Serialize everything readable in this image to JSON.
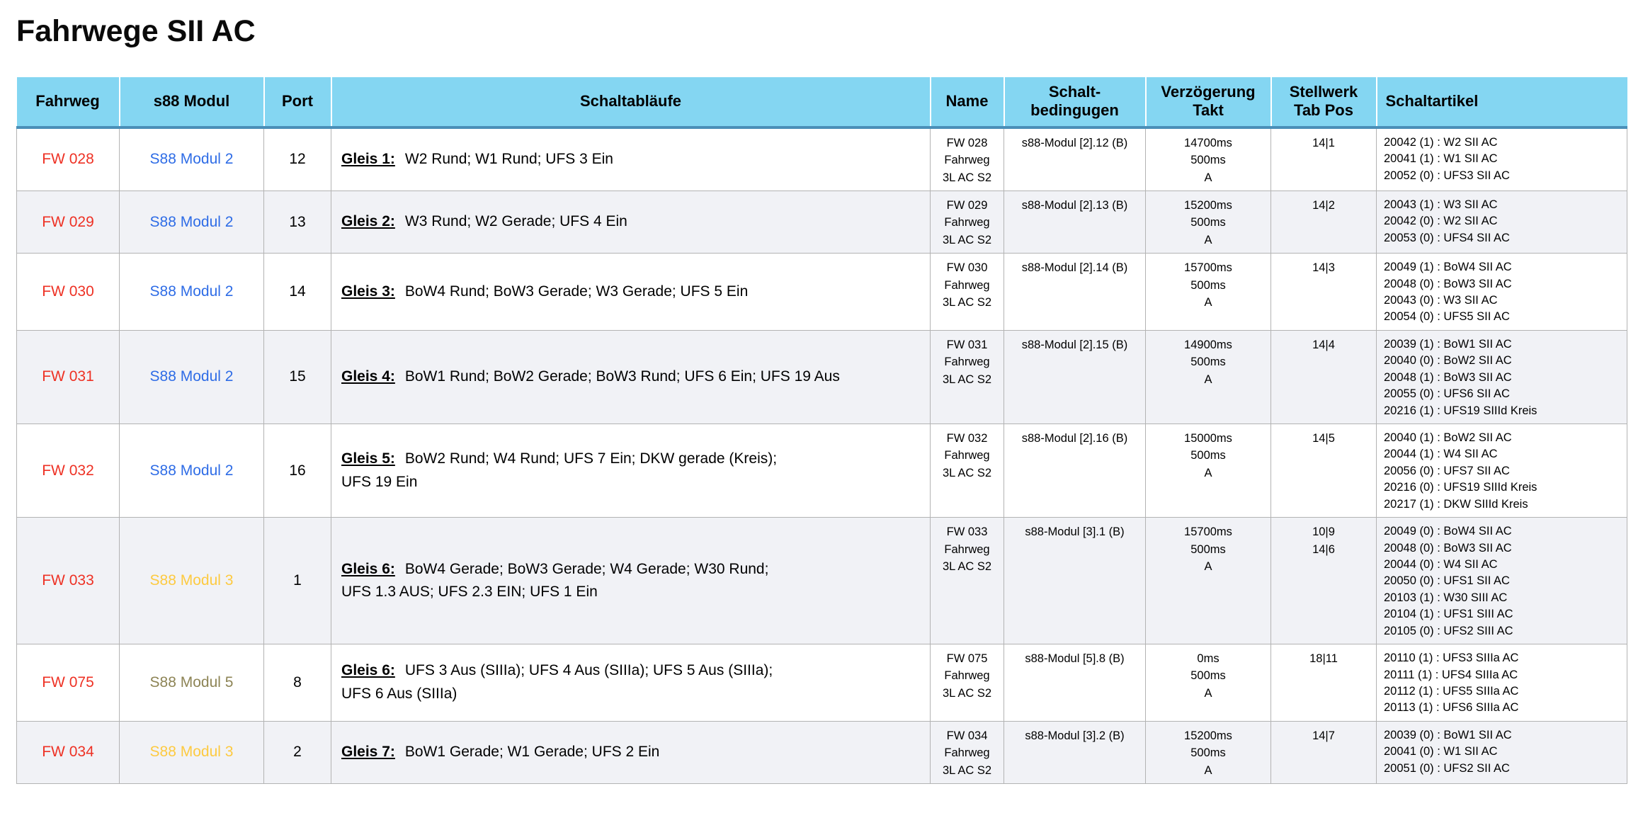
{
  "title": "Fahrwege SII AC",
  "colors": {
    "header_bg": "#84d6f2",
    "header_border": "#4a8fb8",
    "grid_line": "#b3b3b3",
    "row_alt_bg": "#f1f2f6",
    "fahrweg_red": "#ee3124",
    "modul_blue": "#2e6ce6",
    "modul_gold": "#fdca40",
    "modul_olive": "#8d8455"
  },
  "table": {
    "columns": [
      {
        "key": "fahrweg",
        "label": "Fahrweg"
      },
      {
        "key": "modul",
        "label": "s88 Modul"
      },
      {
        "key": "port",
        "label": "Port"
      },
      {
        "key": "ablauf",
        "label": "Schaltabläufe"
      },
      {
        "key": "name",
        "label": "Name"
      },
      {
        "key": "beding",
        "label": "Schalt-\nbedingugen"
      },
      {
        "key": "verz",
        "label": "Verzögerung\nTakt"
      },
      {
        "key": "stellwerk",
        "label": "Stellwerk\nTab Pos"
      },
      {
        "key": "artikel",
        "label": "Schaltartikel"
      }
    ],
    "rows": [
      {
        "fahrweg": "FW 028",
        "modul": "S88 Modul 2",
        "modul_color": "blue",
        "port": "12",
        "gleis": "Gleis 1:",
        "ablauf": "W2 Rund; W1 Rund; UFS 3 Ein",
        "name": "FW 028\nFahrweg\n3L AC S2",
        "beding": "s88-Modul [2].12 (B)",
        "verz": "14700ms\n500ms\nA",
        "stellwerk": "14|1",
        "artikel": [
          "20042 (1) : W2 SII AC",
          "20041 (1) : W1 SII AC",
          "20052 (0) : UFS3 SII AC"
        ]
      },
      {
        "fahrweg": "FW 029",
        "modul": "S88 Modul 2",
        "modul_color": "blue",
        "port": "13",
        "gleis": "Gleis 2:",
        "ablauf": "W3 Rund; W2 Gerade; UFS 4 Ein",
        "name": "FW 029\nFahrweg\n3L AC S2",
        "beding": "s88-Modul [2].13 (B)",
        "verz": "15200ms\n500ms\nA",
        "stellwerk": "14|2",
        "artikel": [
          "20043 (1) : W3 SII AC",
          "20042 (0) : W2 SII AC",
          "20053 (0) : UFS4 SII AC"
        ]
      },
      {
        "fahrweg": "FW 030",
        "modul": "S88 Modul 2",
        "modul_color": "blue",
        "port": "14",
        "gleis": "Gleis 3:",
        "ablauf": "BoW4 Rund; BoW3 Gerade; W3 Gerade; UFS 5 Ein",
        "name": "FW 030\nFahrweg\n3L AC S2",
        "beding": "s88-Modul [2].14 (B)",
        "verz": "15700ms\n500ms\nA",
        "stellwerk": "14|3",
        "artikel": [
          "20049 (1) : BoW4 SII AC",
          "20048 (0) : BoW3 SII AC",
          "20043 (0) : W3 SII AC",
          "20054 (0) : UFS5 SII AC"
        ]
      },
      {
        "fahrweg": "FW 031",
        "modul": "S88 Modul 2",
        "modul_color": "blue",
        "port": "15",
        "gleis": "Gleis 4:",
        "ablauf": "BoW1 Rund; BoW2 Gerade; BoW3 Rund; UFS 6 Ein; UFS 19 Aus",
        "name": "FW 031\nFahrweg\n3L AC S2",
        "beding": "s88-Modul [2].15 (B)",
        "verz": "14900ms\n500ms\nA",
        "stellwerk": "14|4",
        "artikel": [
          "20039 (1) : BoW1 SII AC",
          "20040 (0) : BoW2 SII AC",
          "20048 (1) : BoW3 SII AC",
          "20055 (0) : UFS6 SII AC",
          "20216 (1) : UFS19 SIIId Kreis"
        ]
      },
      {
        "fahrweg": "FW 032",
        "modul": "S88 Modul 2",
        "modul_color": "blue",
        "port": "16",
        "gleis": "Gleis 5:",
        "ablauf": "BoW2 Rund; W4 Rund; UFS 7 Ein; DKW gerade (Kreis);\nUFS 19 Ein",
        "name": "FW 032\nFahrweg\n3L AC S2",
        "beding": "s88-Modul [2].16 (B)",
        "verz": "15000ms\n500ms\nA",
        "stellwerk": "14|5",
        "artikel": [
          "20040 (1) : BoW2 SII AC",
          "20044 (1) : W4 SII AC",
          "20056 (0) : UFS7 SII AC",
          "20216 (0) : UFS19 SIIId Kreis",
          "20217 (1) : DKW SIIId Kreis"
        ]
      },
      {
        "fahrweg": "FW 033",
        "modul": "S88 Modul 3",
        "modul_color": "gold",
        "port": "1",
        "gleis": "Gleis 6:",
        "ablauf": "BoW4 Gerade; BoW3 Gerade; W4 Gerade; W30 Rund;\nUFS 1.3 AUS;  UFS 2.3 EIN; UFS 1 Ein",
        "name": "FW 033\nFahrweg\n3L AC S2",
        "beding": "s88-Modul [3].1 (B)",
        "verz": "15700ms\n500ms\nA",
        "stellwerk": "10|9\n14|6",
        "artikel": [
          "20049 (0) : BoW4 SII AC",
          "20048 (0) : BoW3 SII AC",
          "20044 (0) : W4 SII AC",
          "20050 (0) : UFS1 SII AC",
          "20103 (1) : W30 SIII AC",
          "20104 (1) : UFS1 SIII AC",
          "20105 (0) : UFS2 SIII AC"
        ]
      },
      {
        "fahrweg": "FW 075",
        "modul": "S88 Modul 5",
        "modul_color": "olive",
        "port": "8",
        "gleis": "Gleis 6:",
        "ablauf": "UFS 3 Aus  (SIIIa); UFS 4 Aus  (SIIIa); UFS 5 Aus  (SIIIa);\nUFS 6 Aus  (SIIIa)",
        "name": "FW 075\nFahrweg\n3L AC S2",
        "beding": "s88-Modul [5].8 (B)",
        "verz": "0ms\n500ms\nA",
        "stellwerk": "18|11",
        "artikel": [
          "20110 (1) : UFS3 SIIIa AC",
          "20111 (1) : UFS4 SIIIa AC",
          "20112 (1) : UFS5 SIIIa AC",
          "20113 (1) : UFS6 SIIIa AC"
        ]
      },
      {
        "fahrweg": "FW 034",
        "modul": "S88 Modul 3",
        "modul_color": "gold",
        "port": "2",
        "gleis": "Gleis 7:",
        "ablauf": "BoW1 Gerade; W1 Gerade; UFS 2 Ein",
        "name": "FW 034\nFahrweg\n3L AC S2",
        "beding": "s88-Modul [3].2 (B)",
        "verz": "15200ms\n500ms\nA",
        "stellwerk": "14|7",
        "artikel": [
          "20039 (0) : BoW1 SII AC",
          "20041 (0) : W1 SII AC",
          "20051 (0) : UFS2 SII AC"
        ]
      }
    ]
  }
}
